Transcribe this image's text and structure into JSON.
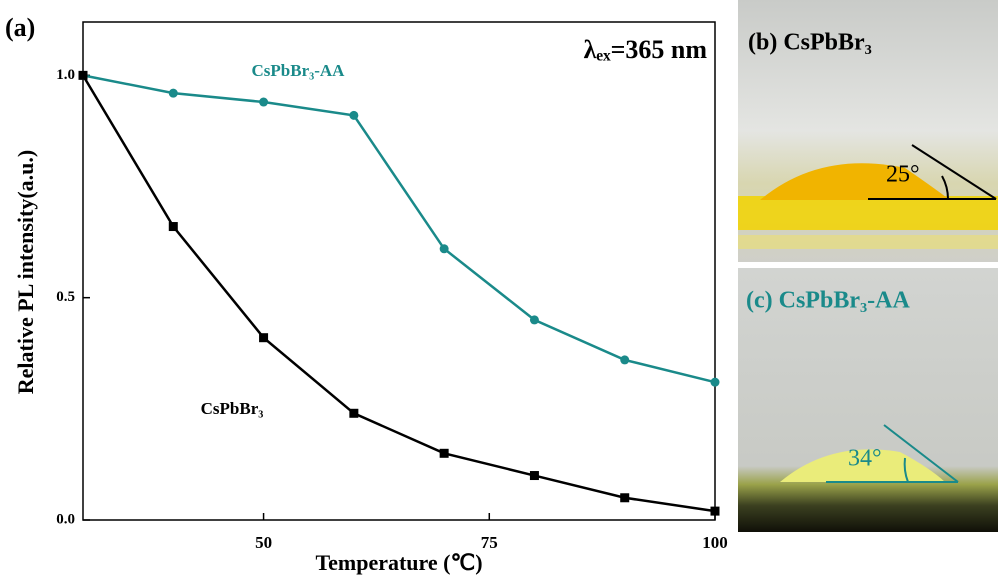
{
  "chart_data": {
    "type": "line",
    "panel_label": "(a)",
    "annotation": "λₑₓ=365 nm",
    "xlabel": "Temperature (℃)",
    "ylabel": "Relative PL intensity(a.u.)",
    "x": [
      30,
      40,
      50,
      60,
      70,
      80,
      90,
      100
    ],
    "series": [
      {
        "name": "CsPbBr₃-AA",
        "color": "#1a8a8a",
        "marker": "circle",
        "values": [
          1.0,
          0.96,
          0.94,
          0.91,
          0.61,
          0.45,
          0.36,
          0.31
        ]
      },
      {
        "name": "CsPbBr₃",
        "color": "#000000",
        "marker": "square",
        "values": [
          1.0,
          0.66,
          0.41,
          0.24,
          0.15,
          0.1,
          0.05,
          0.02
        ]
      }
    ],
    "xlim": [
      30,
      100
    ],
    "xticks": [
      50,
      75,
      100
    ],
    "ylim": [
      0,
      1.12
    ],
    "yticks": [
      {
        "value": 0,
        "label": "0.0"
      },
      0.5,
      {
        "value": 1,
        "label": "1.0"
      }
    ]
  },
  "photos": [
    {
      "label": "(b)  CsPbBr₃",
      "angle": "25°"
    },
    {
      "label": "(c) CsPbBr₃-AA",
      "angle": "34°"
    }
  ]
}
